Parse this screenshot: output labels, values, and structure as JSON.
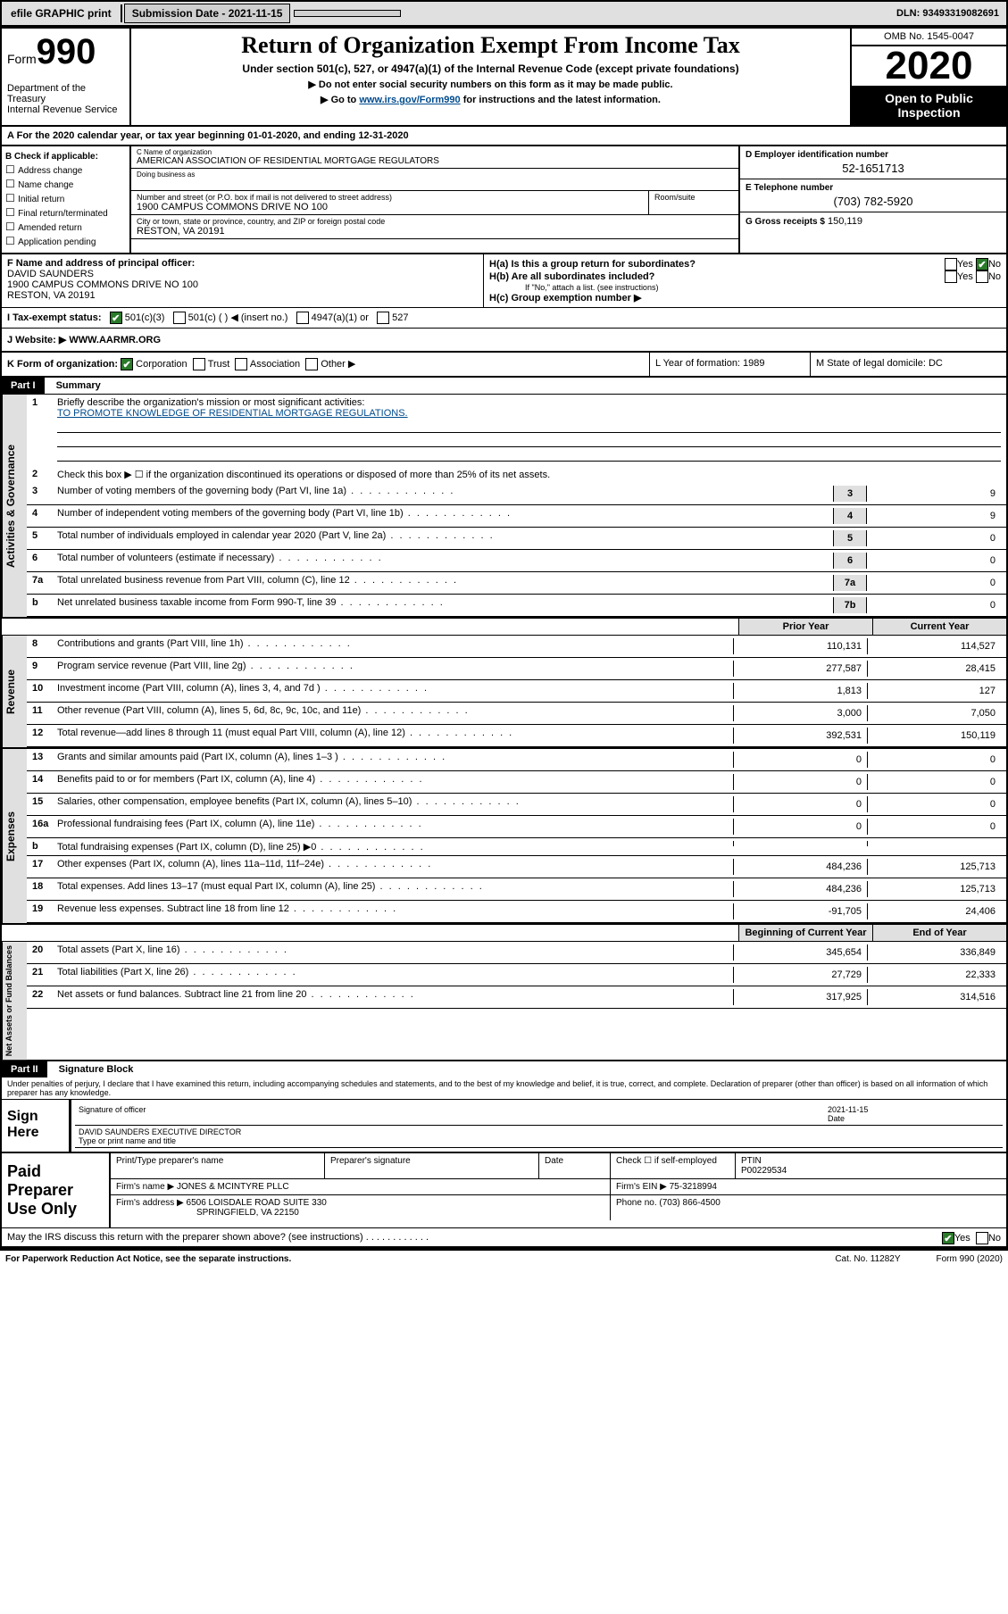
{
  "topbar": {
    "efile": "efile GRAPHIC print",
    "subdate_lbl": "Submission Date - 2021-11-15",
    "dln": "DLN: 93493319082691"
  },
  "header": {
    "form_prefix": "Form",
    "form_num": "990",
    "dept": "Department of the Treasury\nInternal Revenue Service",
    "title": "Return of Organization Exempt From Income Tax",
    "subtitle": "Under section 501(c), 527, or 4947(a)(1) of the Internal Revenue Code (except private foundations)",
    "arrow1": "▶ Do not enter social security numbers on this form as it may be made public.",
    "arrow2_pre": "▶ Go to ",
    "arrow2_link": "www.irs.gov/Form990",
    "arrow2_post": " for instructions and the latest information.",
    "omb": "OMB No. 1545-0047",
    "year": "2020",
    "open": "Open to Public Inspection"
  },
  "period": {
    "text": "For the 2020 calendar year, or tax year beginning 01-01-2020",
    "end": ", and ending 12-31-2020"
  },
  "boxB": {
    "lbl": "B Check if applicable:",
    "opts": [
      "Address change",
      "Name change",
      "Initial return",
      "Final return/terminated",
      "Amended return",
      "Application pending"
    ]
  },
  "boxC": {
    "name_lbl": "C Name of organization",
    "name": "AMERICAN ASSOCIATION OF RESIDENTIAL MORTGAGE REGULATORS",
    "dba_lbl": "Doing business as",
    "street_lbl": "Number and street (or P.O. box if mail is not delivered to street address)",
    "street": "1900 CAMPUS COMMONS DRIVE NO 100",
    "room_lbl": "Room/suite",
    "city_lbl": "City or town, state or province, country, and ZIP or foreign postal code",
    "city": "RESTON, VA  20191"
  },
  "boxD": {
    "lbl": "D Employer identification number",
    "val": "52-1651713"
  },
  "boxE": {
    "lbl": "E Telephone number",
    "val": "(703) 782-5920"
  },
  "boxG": {
    "lbl": "G Gross receipts $",
    "val": "150,119"
  },
  "boxF": {
    "lbl": "F Name and address of principal officer:",
    "name": "DAVID SAUNDERS",
    "addr": "1900 CAMPUS COMMONS DRIVE NO 100",
    "city": "RESTON, VA  20191"
  },
  "boxH": {
    "ha": "H(a)  Is this a group return for subordinates?",
    "hb": "H(b)  Are all subordinates included?",
    "hb_note": "If \"No,\" attach a list. (see instructions)",
    "hc": "H(c)  Group exemption number ▶",
    "yes": "Yes",
    "no": "No"
  },
  "rowI": {
    "lbl": "I   Tax-exempt status:",
    "o1": "501(c)(3)",
    "o2": "501(c) (  ) ◀ (insert no.)",
    "o3": "4947(a)(1) or",
    "o4": "527"
  },
  "rowJ": {
    "lbl": "J   Website: ▶",
    "val": "WWW.AARMR.ORG"
  },
  "rowK": {
    "lbl": "K Form of organization:",
    "o1": "Corporation",
    "o2": "Trust",
    "o3": "Association",
    "o4": "Other ▶",
    "L": "L Year of formation: 1989",
    "M": "M State of legal domicile: DC"
  },
  "part1": {
    "hdr": "Part I",
    "title": "Summary",
    "q1": "Briefly describe the organization's mission or most significant activities:",
    "mission": "TO PROMOTE KNOWLEDGE OF RESIDENTIAL MORTGAGE REGULATIONS.",
    "q2": "Check this box ▶ ☐  if the organization discontinued its operations or disposed of more than 25% of its net assets.",
    "lines": [
      {
        "n": "3",
        "t": "Number of voting members of the governing body (Part VI, line 1a)",
        "nc": "3",
        "v": "9"
      },
      {
        "n": "4",
        "t": "Number of independent voting members of the governing body (Part VI, line 1b)",
        "nc": "4",
        "v": "9"
      },
      {
        "n": "5",
        "t": "Total number of individuals employed in calendar year 2020 (Part V, line 2a)",
        "nc": "5",
        "v": "0"
      },
      {
        "n": "6",
        "t": "Total number of volunteers (estimate if necessary)",
        "nc": "6",
        "v": "0"
      },
      {
        "n": "7a",
        "t": "Total unrelated business revenue from Part VIII, column (C), line 12",
        "nc": "7a",
        "v": "0"
      },
      {
        "n": "b",
        "t": "Net unrelated business taxable income from Form 990-T, line 39",
        "nc": "7b",
        "v": "0"
      }
    ],
    "prior_hdr": "Prior Year",
    "curr_hdr": "Current Year",
    "rev": [
      {
        "n": "8",
        "t": "Contributions and grants (Part VIII, line 1h)",
        "p": "110,131",
        "c": "114,527"
      },
      {
        "n": "9",
        "t": "Program service revenue (Part VIII, line 2g)",
        "p": "277,587",
        "c": "28,415"
      },
      {
        "n": "10",
        "t": "Investment income (Part VIII, column (A), lines 3, 4, and 7d )",
        "p": "1,813",
        "c": "127"
      },
      {
        "n": "11",
        "t": "Other revenue (Part VIII, column (A), lines 5, 6d, 8c, 9c, 10c, and 11e)",
        "p": "3,000",
        "c": "7,050"
      },
      {
        "n": "12",
        "t": "Total revenue—add lines 8 through 11 (must equal Part VIII, column (A), line 12)",
        "p": "392,531",
        "c": "150,119"
      }
    ],
    "exp": [
      {
        "n": "13",
        "t": "Grants and similar amounts paid (Part IX, column (A), lines 1–3 )",
        "p": "0",
        "c": "0"
      },
      {
        "n": "14",
        "t": "Benefits paid to or for members (Part IX, column (A), line 4)",
        "p": "0",
        "c": "0"
      },
      {
        "n": "15",
        "t": "Salaries, other compensation, employee benefits (Part IX, column (A), lines 5–10)",
        "p": "0",
        "c": "0"
      },
      {
        "n": "16a",
        "t": "Professional fundraising fees (Part IX, column (A), line 11e)",
        "p": "0",
        "c": "0"
      },
      {
        "n": "b",
        "t": "Total fundraising expenses (Part IX, column (D), line 25) ▶0",
        "p": "",
        "c": ""
      },
      {
        "n": "17",
        "t": "Other expenses (Part IX, column (A), lines 11a–11d, 11f–24e)",
        "p": "484,236",
        "c": "125,713"
      },
      {
        "n": "18",
        "t": "Total expenses. Add lines 13–17 (must equal Part IX, column (A), line 25)",
        "p": "484,236",
        "c": "125,713"
      },
      {
        "n": "19",
        "t": "Revenue less expenses. Subtract line 18 from line 12",
        "p": "-91,705",
        "c": "24,406"
      }
    ],
    "beg_hdr": "Beginning of Current Year",
    "end_hdr": "End of Year",
    "net": [
      {
        "n": "20",
        "t": "Total assets (Part X, line 16)",
        "p": "345,654",
        "c": "336,849"
      },
      {
        "n": "21",
        "t": "Total liabilities (Part X, line 26)",
        "p": "27,729",
        "c": "22,333"
      },
      {
        "n": "22",
        "t": "Net assets or fund balances. Subtract line 21 from line 20",
        "p": "317,925",
        "c": "314,516"
      }
    ]
  },
  "side_labels": {
    "ag": "Activities & Governance",
    "rev": "Revenue",
    "exp": "Expenses",
    "net": "Net Assets or Fund Balances"
  },
  "part2": {
    "hdr": "Part II",
    "title": "Signature Block",
    "decl": "Under penalties of perjury, I declare that I have examined this return, including accompanying schedules and statements, and to the best of my knowledge and belief, it is true, correct, and complete. Declaration of preparer (other than officer) is based on all information of which preparer has any knowledge.",
    "sign_here": "Sign Here",
    "sig_officer": "Signature of officer",
    "date": "2021-11-15",
    "date_lbl": "Date",
    "officer": "DAVID SAUNDERS EXECUTIVE DIRECTOR",
    "type_lbl": "Type or print name and title"
  },
  "prep": {
    "lbl": "Paid Preparer Use Only",
    "c1": "Print/Type preparer's name",
    "c2": "Preparer's signature",
    "c3": "Date",
    "c4": "Check ☐ if self-employed",
    "c5_lbl": "PTIN",
    "c5": "P00229534",
    "firm_lbl": "Firm's name  ▶",
    "firm": "JONES & MCINTYRE PLLC",
    "ein_lbl": "Firm's EIN ▶",
    "ein": "75-3218994",
    "addr_lbl": "Firm's address ▶",
    "addr": "6506 LOISDALE ROAD SUITE 330",
    "addr2": "SPRINGFIELD, VA  22150",
    "phone_lbl": "Phone no.",
    "phone": "(703) 866-4500"
  },
  "footer": {
    "q": "May the IRS discuss this return with the preparer shown above? (see instructions)",
    "yes": "Yes",
    "no": "No",
    "paperwork": "For Paperwork Reduction Act Notice, see the separate instructions.",
    "cat": "Cat. No. 11282Y",
    "form": "Form 990 (2020)"
  }
}
